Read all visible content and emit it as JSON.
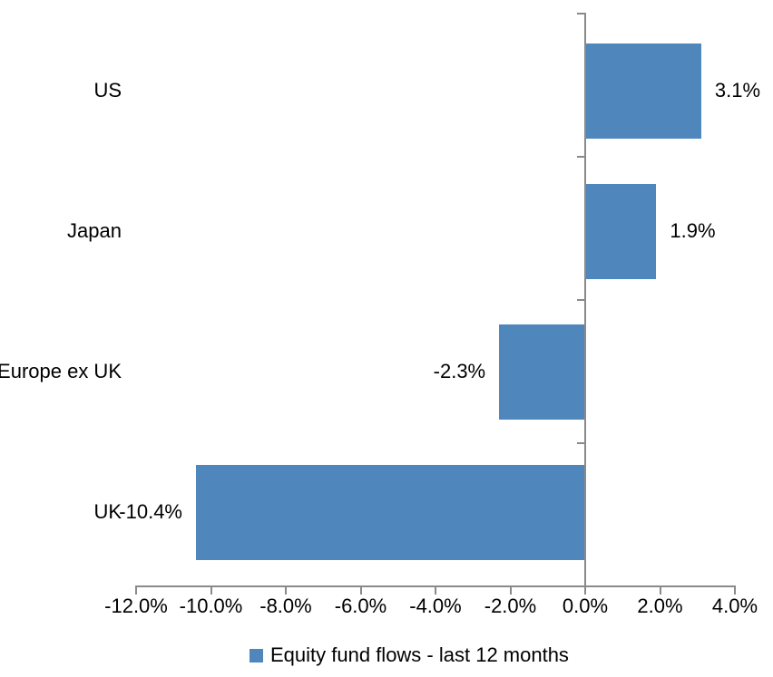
{
  "chart_data": {
    "type": "bar",
    "orientation": "horizontal",
    "title": "",
    "xlabel": "",
    "ylabel": "",
    "categories": [
      "US",
      "Japan",
      "Europe ex UK",
      "UK"
    ],
    "values": [
      3.1,
      1.9,
      -2.3,
      -10.4
    ],
    "data_labels": [
      "3.1%",
      "1.9%",
      "-2.3%",
      "-10.4%"
    ],
    "series_name": "Equity fund flows - last 12 months",
    "xlim": [
      -12,
      4
    ],
    "x_ticks": [
      -12,
      -10,
      -8,
      -6,
      -4,
      -2,
      0,
      2,
      4
    ],
    "x_tick_labels": [
      "-12.0%",
      "-10.0%",
      "-8.0%",
      "-6.0%",
      "-4.0%",
      "-2.0%",
      "0.0%",
      "2.0%",
      "4.0%"
    ],
    "grid": false,
    "legend_position": "bottom",
    "colors": {
      "bar": "#4F87BD",
      "axis": "#8A8A8A",
      "text": "#000000",
      "background": "#FFFFFF"
    }
  },
  "legend": {
    "label": "Equity fund flows - last 12 months"
  }
}
